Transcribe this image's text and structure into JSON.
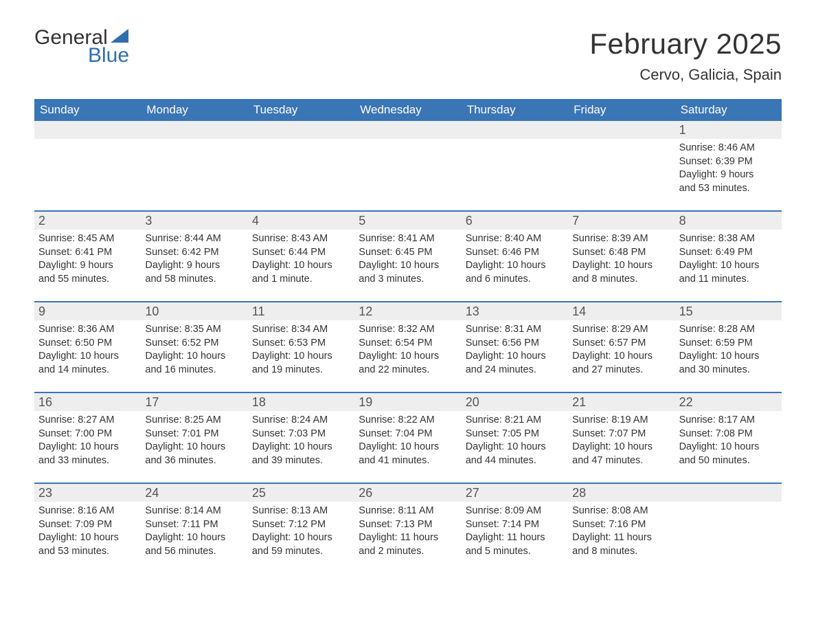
{
  "brand": {
    "word1": "General",
    "word2": "Blue",
    "accent": "#2f6fae",
    "text": "#333333"
  },
  "title": "February 2025",
  "location": "Cervo, Galicia, Spain",
  "colors": {
    "header_bg": "#3a75b6",
    "header_text": "#ffffff",
    "band_bg": "#eeeeee",
    "week_border": "#3a75b6",
    "body_text": "#333333",
    "page_bg": "#ffffff"
  },
  "weekdays": [
    "Sunday",
    "Monday",
    "Tuesday",
    "Wednesday",
    "Thursday",
    "Friday",
    "Saturday"
  ],
  "weeks": [
    [
      null,
      null,
      null,
      null,
      null,
      null,
      {
        "d": "1",
        "sunrise": "Sunrise: 8:46 AM",
        "sunset": "Sunset: 6:39 PM",
        "day1": "Daylight: 9 hours",
        "day2": "and 53 minutes."
      }
    ],
    [
      {
        "d": "2",
        "sunrise": "Sunrise: 8:45 AM",
        "sunset": "Sunset: 6:41 PM",
        "day1": "Daylight: 9 hours",
        "day2": "and 55 minutes."
      },
      {
        "d": "3",
        "sunrise": "Sunrise: 8:44 AM",
        "sunset": "Sunset: 6:42 PM",
        "day1": "Daylight: 9 hours",
        "day2": "and 58 minutes."
      },
      {
        "d": "4",
        "sunrise": "Sunrise: 8:43 AM",
        "sunset": "Sunset: 6:44 PM",
        "day1": "Daylight: 10 hours",
        "day2": "and 1 minute."
      },
      {
        "d": "5",
        "sunrise": "Sunrise: 8:41 AM",
        "sunset": "Sunset: 6:45 PM",
        "day1": "Daylight: 10 hours",
        "day2": "and 3 minutes."
      },
      {
        "d": "6",
        "sunrise": "Sunrise: 8:40 AM",
        "sunset": "Sunset: 6:46 PM",
        "day1": "Daylight: 10 hours",
        "day2": "and 6 minutes."
      },
      {
        "d": "7",
        "sunrise": "Sunrise: 8:39 AM",
        "sunset": "Sunset: 6:48 PM",
        "day1": "Daylight: 10 hours",
        "day2": "and 8 minutes."
      },
      {
        "d": "8",
        "sunrise": "Sunrise: 8:38 AM",
        "sunset": "Sunset: 6:49 PM",
        "day1": "Daylight: 10 hours",
        "day2": "and 11 minutes."
      }
    ],
    [
      {
        "d": "9",
        "sunrise": "Sunrise: 8:36 AM",
        "sunset": "Sunset: 6:50 PM",
        "day1": "Daylight: 10 hours",
        "day2": "and 14 minutes."
      },
      {
        "d": "10",
        "sunrise": "Sunrise: 8:35 AM",
        "sunset": "Sunset: 6:52 PM",
        "day1": "Daylight: 10 hours",
        "day2": "and 16 minutes."
      },
      {
        "d": "11",
        "sunrise": "Sunrise: 8:34 AM",
        "sunset": "Sunset: 6:53 PM",
        "day1": "Daylight: 10 hours",
        "day2": "and 19 minutes."
      },
      {
        "d": "12",
        "sunrise": "Sunrise: 8:32 AM",
        "sunset": "Sunset: 6:54 PM",
        "day1": "Daylight: 10 hours",
        "day2": "and 22 minutes."
      },
      {
        "d": "13",
        "sunrise": "Sunrise: 8:31 AM",
        "sunset": "Sunset: 6:56 PM",
        "day1": "Daylight: 10 hours",
        "day2": "and 24 minutes."
      },
      {
        "d": "14",
        "sunrise": "Sunrise: 8:29 AM",
        "sunset": "Sunset: 6:57 PM",
        "day1": "Daylight: 10 hours",
        "day2": "and 27 minutes."
      },
      {
        "d": "15",
        "sunrise": "Sunrise: 8:28 AM",
        "sunset": "Sunset: 6:59 PM",
        "day1": "Daylight: 10 hours",
        "day2": "and 30 minutes."
      }
    ],
    [
      {
        "d": "16",
        "sunrise": "Sunrise: 8:27 AM",
        "sunset": "Sunset: 7:00 PM",
        "day1": "Daylight: 10 hours",
        "day2": "and 33 minutes."
      },
      {
        "d": "17",
        "sunrise": "Sunrise: 8:25 AM",
        "sunset": "Sunset: 7:01 PM",
        "day1": "Daylight: 10 hours",
        "day2": "and 36 minutes."
      },
      {
        "d": "18",
        "sunrise": "Sunrise: 8:24 AM",
        "sunset": "Sunset: 7:03 PM",
        "day1": "Daylight: 10 hours",
        "day2": "and 39 minutes."
      },
      {
        "d": "19",
        "sunrise": "Sunrise: 8:22 AM",
        "sunset": "Sunset: 7:04 PM",
        "day1": "Daylight: 10 hours",
        "day2": "and 41 minutes."
      },
      {
        "d": "20",
        "sunrise": "Sunrise: 8:21 AM",
        "sunset": "Sunset: 7:05 PM",
        "day1": "Daylight: 10 hours",
        "day2": "and 44 minutes."
      },
      {
        "d": "21",
        "sunrise": "Sunrise: 8:19 AM",
        "sunset": "Sunset: 7:07 PM",
        "day1": "Daylight: 10 hours",
        "day2": "and 47 minutes."
      },
      {
        "d": "22",
        "sunrise": "Sunrise: 8:17 AM",
        "sunset": "Sunset: 7:08 PM",
        "day1": "Daylight: 10 hours",
        "day2": "and 50 minutes."
      }
    ],
    [
      {
        "d": "23",
        "sunrise": "Sunrise: 8:16 AM",
        "sunset": "Sunset: 7:09 PM",
        "day1": "Daylight: 10 hours",
        "day2": "and 53 minutes."
      },
      {
        "d": "24",
        "sunrise": "Sunrise: 8:14 AM",
        "sunset": "Sunset: 7:11 PM",
        "day1": "Daylight: 10 hours",
        "day2": "and 56 minutes."
      },
      {
        "d": "25",
        "sunrise": "Sunrise: 8:13 AM",
        "sunset": "Sunset: 7:12 PM",
        "day1": "Daylight: 10 hours",
        "day2": "and 59 minutes."
      },
      {
        "d": "26",
        "sunrise": "Sunrise: 8:11 AM",
        "sunset": "Sunset: 7:13 PM",
        "day1": "Daylight: 11 hours",
        "day2": "and 2 minutes."
      },
      {
        "d": "27",
        "sunrise": "Sunrise: 8:09 AM",
        "sunset": "Sunset: 7:14 PM",
        "day1": "Daylight: 11 hours",
        "day2": "and 5 minutes."
      },
      {
        "d": "28",
        "sunrise": "Sunrise: 8:08 AM",
        "sunset": "Sunset: 7:16 PM",
        "day1": "Daylight: 11 hours",
        "day2": "and 8 minutes."
      },
      null
    ]
  ]
}
